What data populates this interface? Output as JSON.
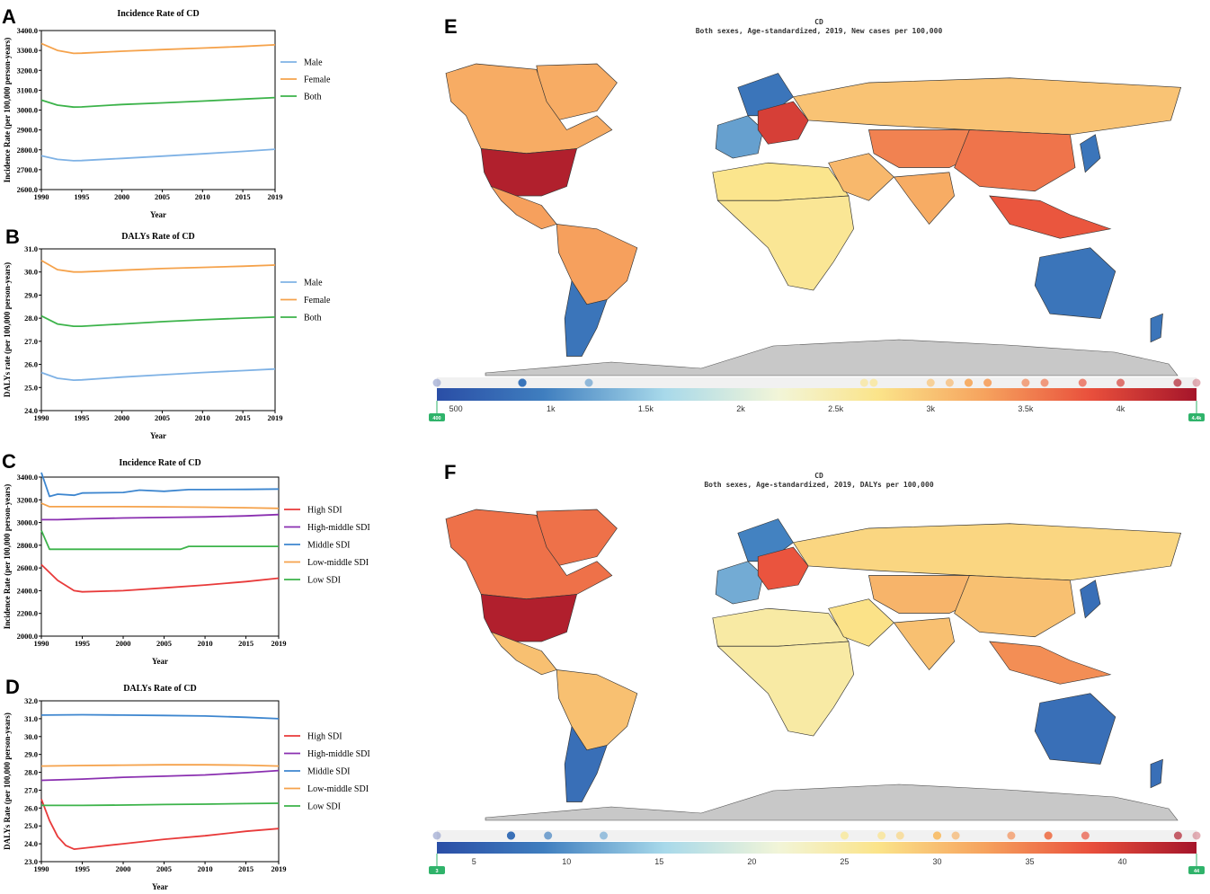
{
  "panels": {
    "A": "A",
    "B": "B",
    "C": "C",
    "D": "D",
    "E": "E",
    "F": "F"
  },
  "chart_data": [
    {
      "id": "A",
      "type": "line",
      "title": "Incidence Rate of CD",
      "xlabel": "Year",
      "ylabel": "Incidence Rate (per 100,000 person-years)",
      "xlim": [
        1990,
        2019
      ],
      "ylim": [
        2600,
        3400
      ],
      "xticks": [
        "1990",
        "1995",
        "2000",
        "2005",
        "2010",
        "2015",
        "2019"
      ],
      "yticks": [
        "2600.0",
        "2700.0",
        "2800.0",
        "2900.0",
        "3000.0",
        "3100.0",
        "3200.0",
        "3300.0",
        "3400.0"
      ],
      "series": [
        {
          "name": "Male",
          "color": "#7fb2e5",
          "x": [
            1990,
            1992,
            1994,
            1995,
            2000,
            2005,
            2010,
            2015,
            2019
          ],
          "values": [
            2770,
            2752,
            2745,
            2746,
            2757,
            2768,
            2780,
            2792,
            2803
          ]
        },
        {
          "name": "Female",
          "color": "#f5a24b",
          "x": [
            1990,
            1992,
            1994,
            1995,
            2000,
            2005,
            2010,
            2015,
            2019
          ],
          "values": [
            3335,
            3300,
            3285,
            3286,
            3296,
            3304,
            3312,
            3320,
            3328
          ]
        },
        {
          "name": "Both",
          "color": "#3cb34a",
          "x": [
            1990,
            1992,
            1994,
            1995,
            2000,
            2005,
            2010,
            2015,
            2019
          ],
          "values": [
            3050,
            3025,
            3015,
            3016,
            3028,
            3036,
            3045,
            3055,
            3063
          ]
        }
      ]
    },
    {
      "id": "B",
      "type": "line",
      "title": "DALYs Rate of CD",
      "xlabel": "Year",
      "ylabel": "DALYs rate (per 100,000 person-years)",
      "xlim": [
        1990,
        2019
      ],
      "ylim": [
        24.0,
        31.0
      ],
      "xticks": [
        "1990",
        "1995",
        "2000",
        "2005",
        "2010",
        "2015",
        "2019"
      ],
      "yticks": [
        "24.0",
        "25.0",
        "26.0",
        "27.0",
        "28.0",
        "29.0",
        "30.0",
        "31.0"
      ],
      "series": [
        {
          "name": "Male",
          "color": "#7fb2e5",
          "x": [
            1990,
            1992,
            1994,
            1995,
            2000,
            2005,
            2010,
            2015,
            2019
          ],
          "values": [
            25.65,
            25.4,
            25.32,
            25.33,
            25.45,
            25.55,
            25.65,
            25.73,
            25.8
          ]
        },
        {
          "name": "Female",
          "color": "#f5a24b",
          "x": [
            1990,
            1992,
            1994,
            1995,
            2000,
            2005,
            2010,
            2015,
            2019
          ],
          "values": [
            30.5,
            30.1,
            30.0,
            30.0,
            30.08,
            30.15,
            30.2,
            30.25,
            30.3
          ]
        },
        {
          "name": "Both",
          "color": "#3cb34a",
          "x": [
            1990,
            1992,
            1994,
            1995,
            2000,
            2005,
            2010,
            2015,
            2019
          ],
          "values": [
            28.1,
            27.75,
            27.65,
            27.65,
            27.75,
            27.85,
            27.93,
            28.0,
            28.05
          ]
        }
      ]
    },
    {
      "id": "C",
      "type": "line",
      "title": "Incidence Rate of CD",
      "xlabel": "Year",
      "ylabel": "Incidence Rate (per 100,000 person-years)",
      "xlim": [
        1990,
        2019
      ],
      "ylim": [
        2000,
        3400
      ],
      "xticks": [
        "1990",
        "1995",
        "2000",
        "2005",
        "2010",
        "2015",
        "2019"
      ],
      "yticks": [
        "2000.0",
        "2200.0",
        "2400.0",
        "2600.0",
        "2800.0",
        "3000.0",
        "3200.0",
        "3400.0"
      ],
      "series": [
        {
          "name": "High SDI",
          "color": "#e83a3a",
          "x": [
            1990,
            1992,
            1994,
            1995,
            2000,
            2005,
            2010,
            2015,
            2019
          ],
          "values": [
            2630,
            2490,
            2400,
            2390,
            2400,
            2425,
            2450,
            2480,
            2510
          ]
        },
        {
          "name": "High-middle SDI",
          "color": "#8a2fb0",
          "x": [
            1990,
            1992,
            1994,
            1995,
            2000,
            2005,
            2010,
            2015,
            2019
          ],
          "values": [
            3025,
            3025,
            3030,
            3032,
            3040,
            3045,
            3050,
            3058,
            3070
          ]
        },
        {
          "name": "Middle SDI",
          "color": "#3d86cf",
          "x": [
            1990,
            1991,
            1992,
            1994,
            1995,
            2000,
            2002,
            2005,
            2008,
            2010,
            2015,
            2019
          ],
          "values": [
            3440,
            3230,
            3250,
            3240,
            3260,
            3265,
            3285,
            3275,
            3290,
            3290,
            3292,
            3295
          ]
        },
        {
          "name": "Low-middle SDI",
          "color": "#f5a24b",
          "x": [
            1990,
            1991,
            1995,
            2000,
            2005,
            2010,
            2015,
            2019
          ],
          "values": [
            3170,
            3140,
            3140,
            3140,
            3138,
            3135,
            3130,
            3125
          ]
        },
        {
          "name": "Low SDI",
          "color": "#3cb34a",
          "x": [
            1990,
            1991,
            1995,
            2000,
            2005,
            2007,
            2008,
            2010,
            2015,
            2019
          ],
          "values": [
            2930,
            2765,
            2765,
            2765,
            2765,
            2765,
            2790,
            2790,
            2790,
            2790
          ]
        }
      ]
    },
    {
      "id": "D",
      "type": "line",
      "title": "DALYs Rate of CD",
      "xlabel": "Year",
      "ylabel": "DALYs Rate (per 100,000 person-years)",
      "xlim": [
        1990,
        2019
      ],
      "ylim": [
        23.0,
        32.0
      ],
      "xticks": [
        "1990",
        "1995",
        "2000",
        "2005",
        "2010",
        "2015",
        "2019"
      ],
      "yticks": [
        "23.0",
        "24.0",
        "25.0",
        "26.0",
        "27.0",
        "28.0",
        "29.0",
        "30.0",
        "31.0",
        "32.0"
      ],
      "series": [
        {
          "name": "High SDI",
          "color": "#e83a3a",
          "x": [
            1990,
            1991,
            1992,
            1993,
            1994,
            1995,
            2000,
            2005,
            2010,
            2015,
            2019
          ],
          "values": [
            26.5,
            25.3,
            24.4,
            23.9,
            23.7,
            23.75,
            24.0,
            24.25,
            24.45,
            24.7,
            24.85
          ]
        },
        {
          "name": "High-middle SDI",
          "color": "#8a2fb0",
          "x": [
            1990,
            1995,
            2000,
            2005,
            2010,
            2015,
            2019
          ],
          "values": [
            27.55,
            27.62,
            27.72,
            27.78,
            27.85,
            27.98,
            28.1
          ]
        },
        {
          "name": "Middle SDI",
          "color": "#3d86cf",
          "x": [
            1990,
            1995,
            2000,
            2005,
            2010,
            2015,
            2019
          ],
          "values": [
            31.2,
            31.22,
            31.2,
            31.18,
            31.15,
            31.08,
            31.0
          ]
        },
        {
          "name": "Low-middle SDI",
          "color": "#f5a24b",
          "x": [
            1990,
            1995,
            2000,
            2005,
            2010,
            2015,
            2019
          ],
          "values": [
            28.35,
            28.38,
            28.4,
            28.42,
            28.42,
            28.4,
            28.35
          ]
        },
        {
          "name": "Low SDI",
          "color": "#3cb34a",
          "x": [
            1990,
            1995,
            2000,
            2005,
            2010,
            2015,
            2019
          ],
          "values": [
            26.15,
            26.15,
            26.17,
            26.2,
            26.22,
            26.25,
            26.27
          ]
        }
      ]
    }
  ],
  "maps": [
    {
      "id": "E",
      "title": "CD",
      "subtitle": "Both sexes, Age-standardized, 2019, New cases per 100,000",
      "scale_min": 400,
      "scale_max": 4400,
      "handle_min": "400",
      "handle_max": "4.4k",
      "tick_values": [
        500,
        1000,
        1500,
        2000,
        2500,
        3000,
        3500,
        4000
      ],
      "tick_labels": [
        "500",
        "1k",
        "1.5k",
        "2k",
        "2.5k",
        "3k",
        "3.5k",
        "4k"
      ],
      "region_values": {
        "na_us": 4300,
        "na_north": 3200,
        "greenland": 3200,
        "mexico": 3300,
        "south_america": 3300,
        "chile_arg": 850,
        "europe_west": 1200,
        "scandinavia": 850,
        "europe_east": 4000,
        "russia": 3000,
        "africa_north": 2700,
        "africa_sub": 2650,
        "middle_east": 3100,
        "asia_central": 3500,
        "india": 3200,
        "china": 3600,
        "se_asia": 3800,
        "japan": 850,
        "australia": 850,
        "nz": 850
      }
    },
    {
      "id": "F",
      "title": "CD",
      "subtitle": "Both sexes, Age-standardized, 2019, DALYs per 100,000",
      "scale_min": 3,
      "scale_max": 44,
      "handle_min": "3",
      "handle_max": "44",
      "tick_values": [
        5,
        10,
        15,
        20,
        25,
        30,
        35,
        40
      ],
      "tick_labels": [
        "5",
        "10",
        "15",
        "20",
        "25",
        "30",
        "35",
        "40"
      ],
      "region_values": {
        "na_us": 43,
        "na_north": 36,
        "greenland": 36,
        "mexico": 30,
        "south_america": 30,
        "chile_arg": 7,
        "europe_west": 12,
        "scandinavia": 9,
        "europe_east": 38,
        "russia": 28,
        "africa_north": 25,
        "africa_sub": 25,
        "middle_east": 27,
        "asia_central": 31,
        "india": 30,
        "china": 30,
        "se_asia": 34,
        "japan": 7,
        "australia": 7,
        "nz": 7
      }
    }
  ]
}
